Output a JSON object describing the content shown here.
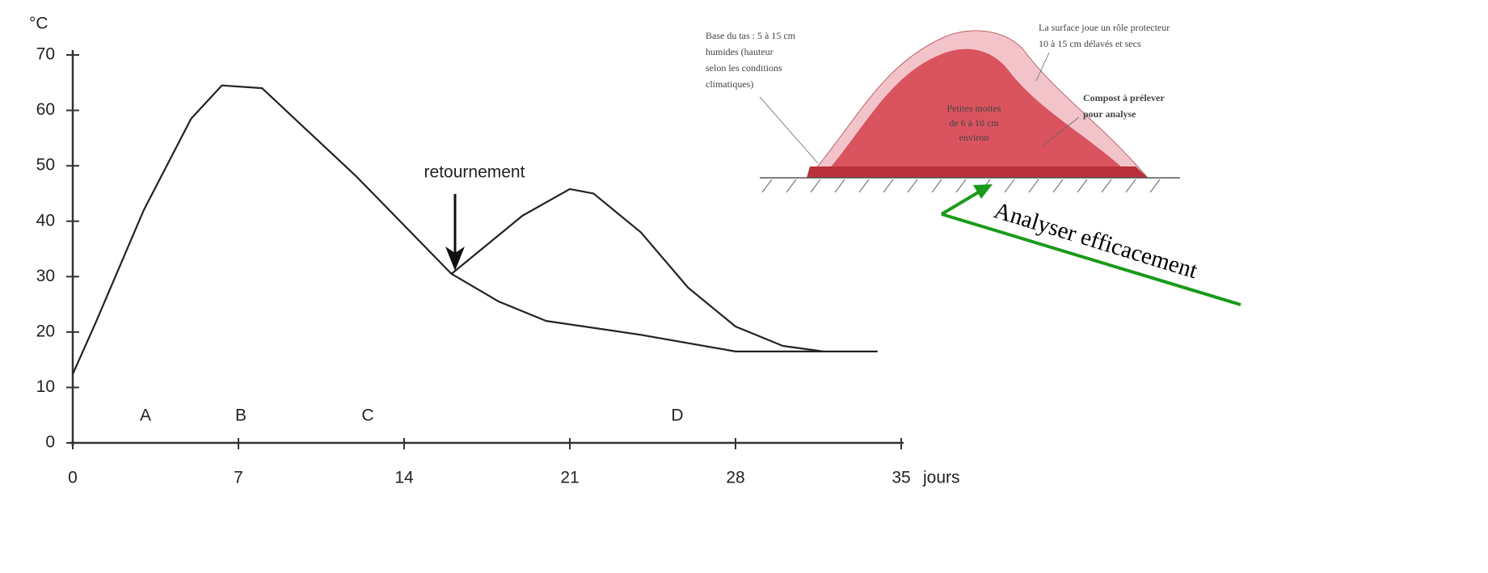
{
  "chart_data": {
    "type": "line",
    "y_label": "°C",
    "x_label": "jours",
    "xlim": [
      0,
      35
    ],
    "xticks": [
      0,
      7,
      14,
      21,
      28,
      35
    ],
    "ylim": [
      0,
      70
    ],
    "yticks": [
      0,
      10,
      20,
      30,
      40,
      50,
      60,
      70
    ],
    "series": [
      {
        "color": "#222222",
        "x": [
          0,
          1,
          3,
          5,
          6.3,
          8,
          12,
          16,
          18,
          20,
          24,
          28,
          34
        ],
        "values": [
          12.4,
          22,
          42,
          58.5,
          64.5,
          64,
          48,
          30.5,
          25.5,
          22,
          19.5,
          16.5,
          16.5
        ]
      },
      {
        "color": "#222222",
        "x": [
          16,
          19,
          21,
          22,
          24,
          26,
          28,
          30,
          31.7
        ],
        "values": [
          30.5,
          41,
          45.8,
          45,
          38,
          28,
          21,
          17.5,
          16.5
        ]
      }
    ],
    "phases": [
      "A",
      "B",
      "C",
      "D"
    ],
    "annotation": "retournement"
  },
  "diagram": {
    "base_label": [
      "Base du tas : 5 à 15 cm",
      "humides (hauteur",
      "selon les conditions",
      "climatiques)"
    ],
    "surface_label": [
      "La surface joue un rôle protecteur",
      "10 à 15 cm délavés et secs"
    ],
    "core_label": [
      "Petites mottes",
      "de 6 à 10 cm",
      "environ"
    ],
    "sample_label": [
      "Compost à prélever",
      "pour analyse"
    ],
    "callout": "Analyser efficacement"
  }
}
